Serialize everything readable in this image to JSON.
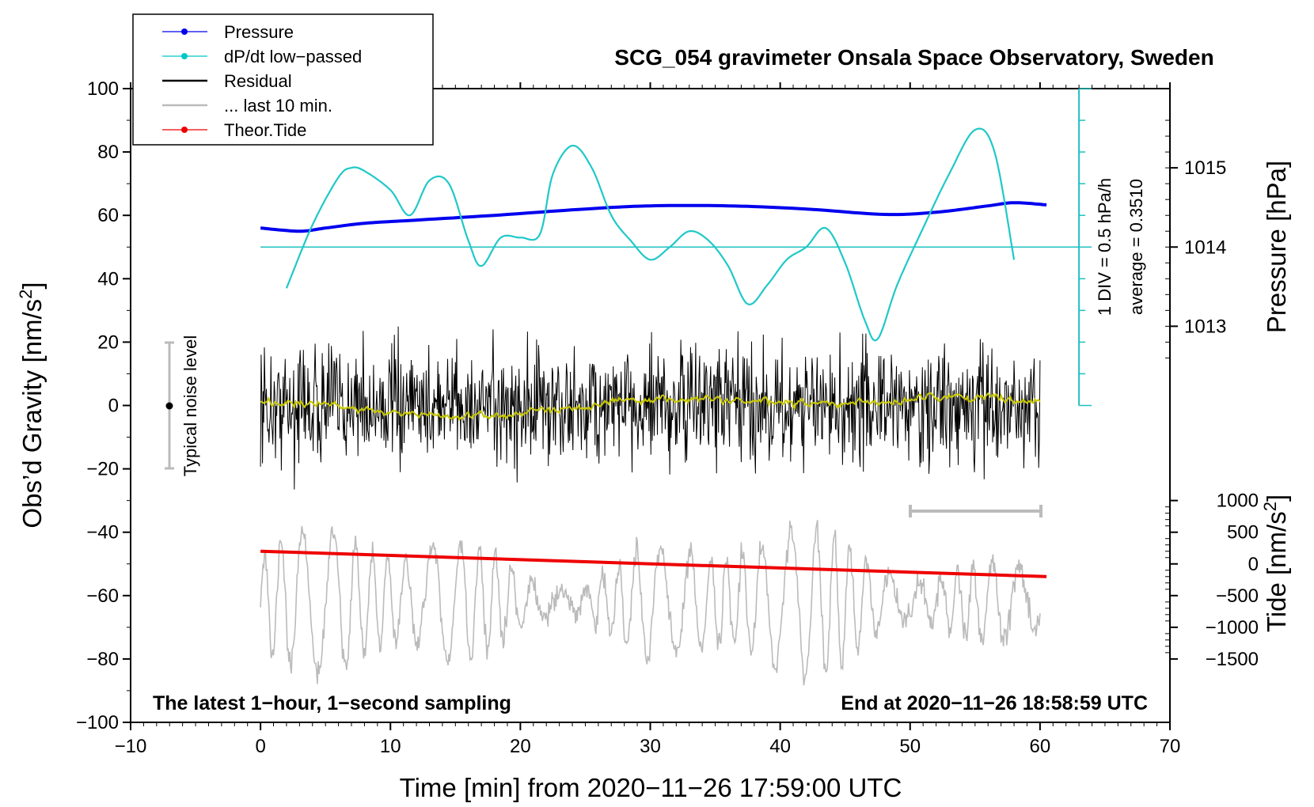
{
  "chart_data": {
    "type": "line",
    "title": "SCG_054 gravimeter Onsala Space Observatory, Sweden",
    "xlabel": "Time [min] from 2020−11−26 17:59:00 UTC",
    "ylabel_left_prefix": "Obs’d Gravity [nm/s",
    "ylabel_left_sup": "2",
    "ylabel_left_suffix": "]",
    "ylabel_right_pressure": "Pressure [hPa]",
    "ylabel_right_tide_prefix": "Tide [nm/s",
    "ylabel_right_tide_sup": "2",
    "ylabel_right_tide_suffix": "]",
    "xlim": [
      -10,
      70
    ],
    "ylim": [
      -100,
      100
    ],
    "xticks": [
      -10,
      0,
      10,
      20,
      30,
      40,
      50,
      60,
      70
    ],
    "yticks": [
      -100,
      -80,
      -60,
      -40,
      -20,
      0,
      20,
      40,
      60,
      80,
      100
    ],
    "pressure_ticks": [
      1015,
      1014,
      1013
    ],
    "tide_ticks": [
      1000,
      500,
      0,
      -500,
      -1000,
      -1500
    ],
    "x_tick_labels": [
      "−10",
      "0",
      "10",
      "20",
      "30",
      "40",
      "50",
      "60",
      "70"
    ],
    "y_tick_labels": [
      "−100",
      "−80",
      "−60",
      "−40",
      "−20",
      "0",
      "20",
      "40",
      "60",
      "80",
      "100"
    ],
    "pressure_tick_labels": [
      "1015",
      "1014",
      "1013"
    ],
    "tide_tick_labels": [
      "1000",
      "500",
      "0",
      "−500",
      "−1000",
      "−1500"
    ],
    "legend": [
      {
        "label": "Pressure",
        "color": "#0000ee",
        "marker": true
      },
      {
        "label": "dP/dt low−passed",
        "color": "#00c8c8",
        "marker": true
      },
      {
        "label": "Residual",
        "color": "#000000",
        "marker": false
      },
      {
        "label": "... last 10 min.",
        "color": "#bbbbbb",
        "marker": false
      },
      {
        "label": "Theor.Tide",
        "color": "#ee0000",
        "marker": true
      }
    ],
    "legend_position": "top-left",
    "annotations": {
      "bottom_left": "The latest 1−hour, 1−second sampling",
      "bottom_right": "End at 2020−11−26 18:58:59 UTC",
      "noise_label": "Typical noise level",
      "scale_div": "1 DIV = 0.5 hPa/h",
      "scale_avg": "average = 0.3510"
    },
    "series": [
      {
        "name": "Pressure",
        "color": "#0000ee",
        "units": "nm/s2 (plot scale)",
        "x": [
          0,
          3,
          5,
          8,
          12,
          18,
          25,
          30,
          36,
          42,
          48,
          52,
          56,
          58,
          60.5
        ],
        "values": [
          56,
          55,
          56,
          57.5,
          58.5,
          60,
          62,
          63,
          63,
          62,
          60.3,
          61,
          63,
          64,
          63.3
        ]
      },
      {
        "name": "dP/dt low-passed",
        "color": "#00c8c8",
        "units": "nm/s2 (plot scale)",
        "x": [
          2,
          4,
          6,
          7,
          8,
          10,
          11.5,
          13,
          14.5,
          16,
          17,
          18.5,
          20,
          21.5,
          22.5,
          24,
          25.5,
          27,
          28.5,
          30,
          31.5,
          33,
          34.5,
          36,
          37.5,
          39,
          40.5,
          42,
          43.5,
          45,
          46.5,
          47.5,
          49,
          51,
          53,
          55,
          56.5,
          58
        ],
        "values": [
          37,
          57,
          72,
          75,
          74,
          68,
          60,
          71,
          70,
          52,
          44,
          53,
          53,
          54,
          73,
          82,
          75,
          60,
          52,
          46,
          50,
          55,
          52,
          44,
          32,
          38,
          46,
          50,
          56,
          45,
          27,
          21,
          38,
          56,
          73,
          87,
          80,
          46
        ]
      },
      {
        "name": "Theor.Tide",
        "color": "#ee0000",
        "units": "nm/s2",
        "x": [
          0,
          60.5
        ],
        "values": [
          -46,
          -54
        ]
      }
    ]
  }
}
